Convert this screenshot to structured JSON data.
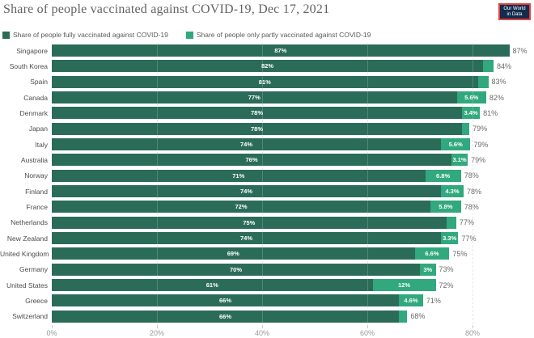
{
  "header": {
    "title": "Share of people vaccinated against COVID-19, Dec 17, 2021",
    "logo": {
      "line1": "Our World",
      "line2": "in Data"
    }
  },
  "legend": {
    "fully": {
      "label": "Share of people fully vaccinated against COVID-19"
    },
    "partly": {
      "label": "Share of people only partly vaccinated against COVID-19"
    }
  },
  "colors": {
    "fully": "#2b6c58",
    "partly": "#31a87e",
    "grid": "#e2e2e2",
    "logo_bg": "#122b4e",
    "logo_border": "#e0413c"
  },
  "chart_data": {
    "type": "bar",
    "orientation": "horizontal",
    "stacked": true,
    "title": "Share of people vaccinated against COVID-19, Dec 17, 2021",
    "xlim": [
      0,
      91
    ],
    "grid": true,
    "legend_position": "top",
    "xticks": [
      "0%",
      "20%",
      "40%",
      "60%",
      "80%"
    ],
    "xtick_values": [
      0,
      20,
      40,
      60,
      80
    ],
    "series": [
      {
        "name": "Share of people fully vaccinated against COVID-19"
      },
      {
        "name": "Share of people only partly vaccinated against COVID-19"
      }
    ],
    "rows": [
      {
        "country": "Singapore",
        "fully": 87,
        "fully_label": "87%",
        "partly": 0,
        "partly_label": "",
        "total_label": "87%"
      },
      {
        "country": "South Korea",
        "fully": 82,
        "fully_label": "82%",
        "partly": 2,
        "partly_label": "",
        "total_label": "84%"
      },
      {
        "country": "Spain",
        "fully": 81,
        "fully_label": "81%",
        "partly": 2,
        "partly_label": "",
        "total_label": "83%"
      },
      {
        "country": "Canada",
        "fully": 77,
        "fully_label": "77%",
        "partly": 5.6,
        "partly_label": "5.6%",
        "total_label": "82%"
      },
      {
        "country": "Denmark",
        "fully": 78,
        "fully_label": "78%",
        "partly": 3.4,
        "partly_label": "3.4%",
        "total_label": "81%"
      },
      {
        "country": "Japan",
        "fully": 78,
        "fully_label": "78%",
        "partly": 1.4,
        "partly_label": "",
        "total_label": "79%"
      },
      {
        "country": "Italy",
        "fully": 74,
        "fully_label": "74%",
        "partly": 5.6,
        "partly_label": "5.6%",
        "total_label": "79%"
      },
      {
        "country": "Australia",
        "fully": 76,
        "fully_label": "76%",
        "partly": 3.1,
        "partly_label": "3.1%",
        "total_label": "79%"
      },
      {
        "country": "Norway",
        "fully": 71,
        "fully_label": "71%",
        "partly": 6.8,
        "partly_label": "6.8%",
        "total_label": "78%"
      },
      {
        "country": "Finland",
        "fully": 74,
        "fully_label": "74%",
        "partly": 4.3,
        "partly_label": "4.3%",
        "total_label": "78%"
      },
      {
        "country": "France",
        "fully": 72,
        "fully_label": "72%",
        "partly": 5.8,
        "partly_label": "5.8%",
        "total_label": "78%"
      },
      {
        "country": "Netherlands",
        "fully": 75,
        "fully_label": "75%",
        "partly": 1.9,
        "partly_label": "",
        "total_label": "77%"
      },
      {
        "country": "New Zealand",
        "fully": 74,
        "fully_label": "74%",
        "partly": 3.3,
        "partly_label": "3.3%",
        "total_label": "77%"
      },
      {
        "country": "United Kingdom",
        "fully": 69,
        "fully_label": "69%",
        "partly": 6.6,
        "partly_label": "6.6%",
        "total_label": "75%"
      },
      {
        "country": "Germany",
        "fully": 70,
        "fully_label": "70%",
        "partly": 3,
        "partly_label": "3%",
        "total_label": "73%"
      },
      {
        "country": "United States",
        "fully": 61,
        "fully_label": "61%",
        "partly": 12,
        "partly_label": "12%",
        "total_label": "72%"
      },
      {
        "country": "Greece",
        "fully": 66,
        "fully_label": "66%",
        "partly": 4.6,
        "partly_label": "4.6%",
        "total_label": "71%"
      },
      {
        "country": "Switzerland",
        "fully": 66,
        "fully_label": "66%",
        "partly": 1.6,
        "partly_label": "",
        "total_label": "68%"
      }
    ]
  }
}
